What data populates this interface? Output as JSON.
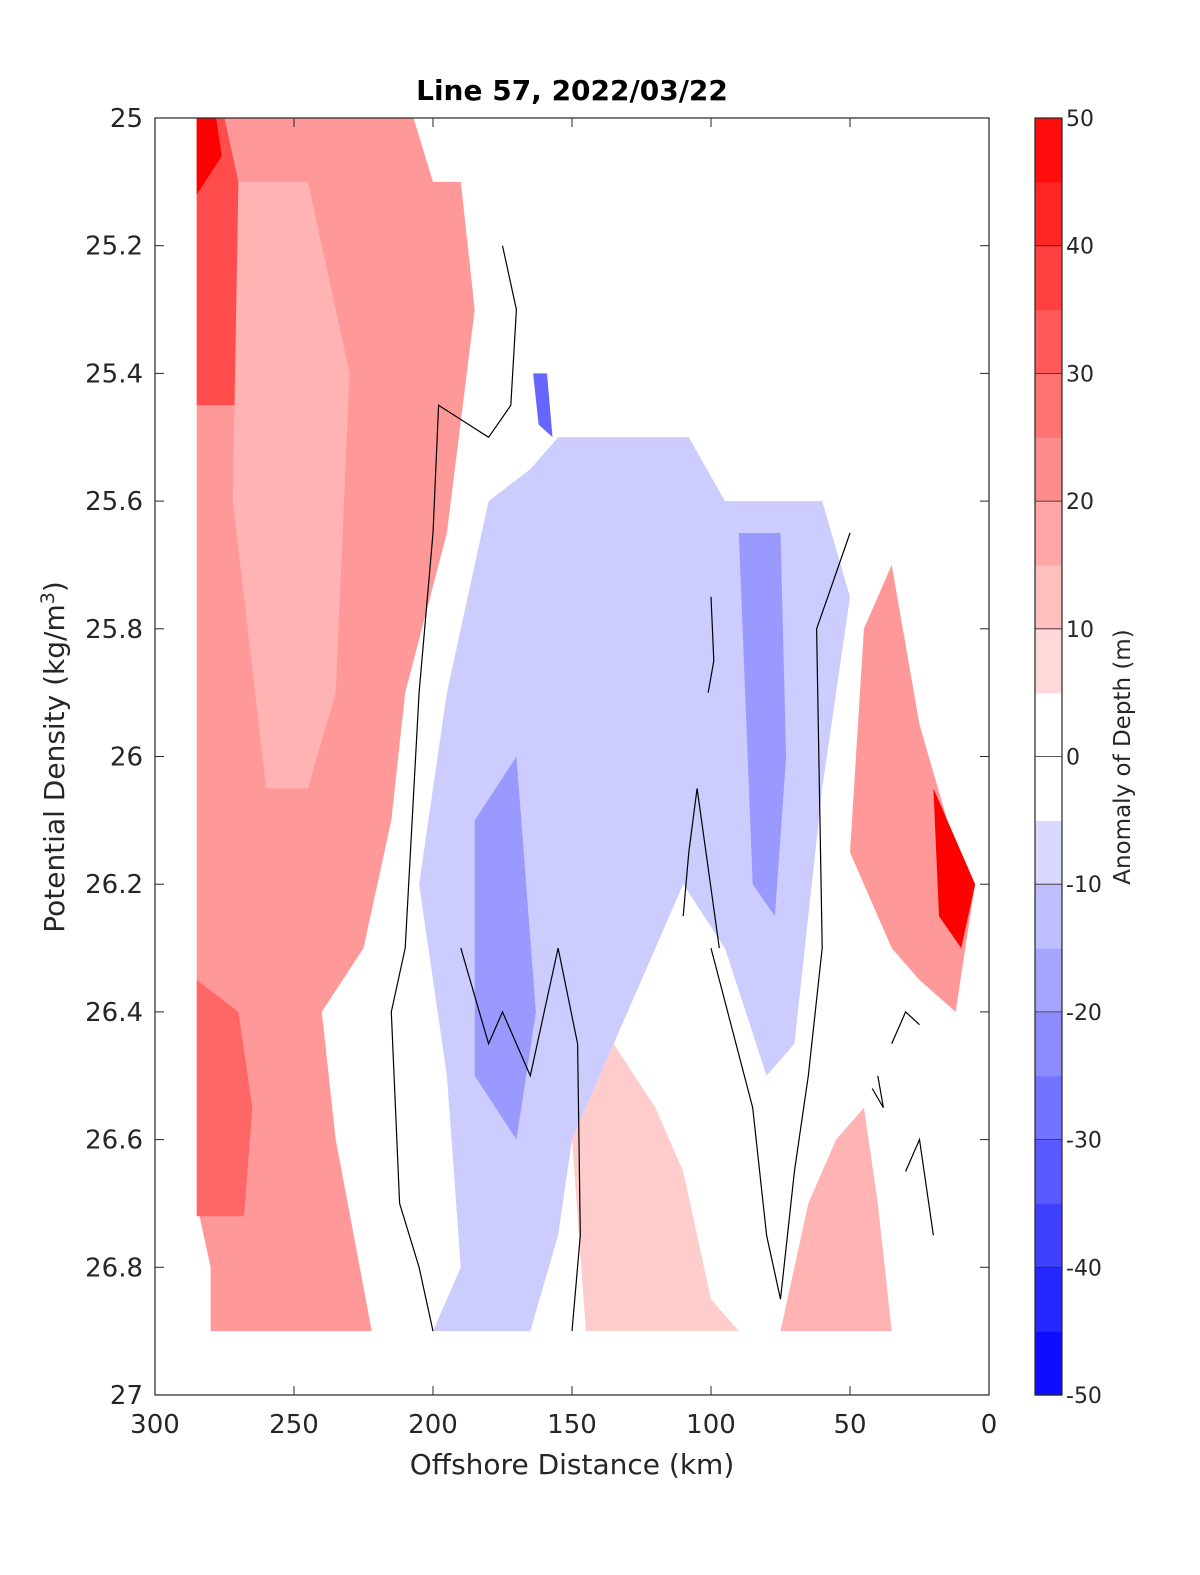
{
  "chart_data": {
    "type": "heatmap",
    "subtype": "filled-contour",
    "title": "Line 57, 2022/03/22",
    "xlabel": "Offshore Distance (km)",
    "ylabel": "Potential Density (kg/m3)",
    "colorbar_label": "Anomaly of Depth (m)",
    "xlim": [
      300,
      0
    ],
    "ylim": [
      27,
      25
    ],
    "x_reversed": true,
    "y_reversed": true,
    "xticks": [
      300,
      250,
      200,
      150,
      100,
      50,
      0
    ],
    "xtick_labels": [
      "300",
      "250",
      "200",
      "150",
      "100",
      "50",
      "0"
    ],
    "yticks": [
      25,
      25.2,
      25.4,
      25.6,
      25.8,
      26,
      26.2,
      26.4,
      26.6,
      26.8,
      27
    ],
    "ytick_labels": [
      "25",
      "25.2",
      "25.4",
      "25.6",
      "25.8",
      "26",
      "26.2",
      "26.4",
      "26.6",
      "26.8",
      "27"
    ],
    "colorbar_range": [
      -50,
      50
    ],
    "colorbar_step": 5,
    "colorbar_ticks": [
      -50,
      -40,
      -30,
      -20,
      -10,
      0,
      10,
      20,
      30,
      40,
      50
    ],
    "colorbar_tick_labels": [
      "-50",
      "-40",
      "-30",
      "-20",
      "-10",
      "0",
      "10",
      "20",
      "30",
      "40",
      "50"
    ],
    "colormap": {
      "negative": "#0000ff",
      "zero": "#ffffff",
      "positive": "#ff0000"
    },
    "zero_contour": "black",
    "grid": false,
    "regions": [
      {
        "id": "offshore-positive",
        "value": 20,
        "polygon": [
          [
            285,
            25
          ],
          [
            207,
            25
          ],
          [
            200,
            25.1
          ],
          [
            190,
            25.1
          ],
          [
            185,
            25.3
          ],
          [
            195,
            25.65
          ],
          [
            210,
            25.9
          ],
          [
            215,
            26.1
          ],
          [
            225,
            26.3
          ],
          [
            240,
            26.4
          ],
          [
            235,
            26.6
          ],
          [
            222,
            26.9
          ],
          [
            280,
            26.9
          ],
          [
            280,
            26.8
          ],
          [
            285,
            26.7
          ]
        ]
      },
      {
        "id": "offshore-positive-core",
        "value": 35,
        "polygon": [
          [
            285,
            25
          ],
          [
            275,
            25
          ],
          [
            270,
            25.1
          ],
          [
            265,
            25.25
          ],
          [
            262,
            25.45
          ],
          [
            285,
            25.45
          ]
        ]
      },
      {
        "id": "offshore-positive-max",
        "value": 50,
        "polygon": [
          [
            285,
            25
          ],
          [
            278,
            25
          ],
          [
            276,
            25.06
          ],
          [
            285,
            25.12
          ]
        ]
      },
      {
        "id": "offshore-positive-deep",
        "value": 30,
        "polygon": [
          [
            285,
            26.35
          ],
          [
            270,
            26.4
          ],
          [
            265,
            26.55
          ],
          [
            268,
            26.72
          ],
          [
            285,
            26.72
          ]
        ]
      },
      {
        "id": "offshore-positive-band",
        "value": 15,
        "polygon": [
          [
            270,
            25.1
          ],
          [
            245,
            25.1
          ],
          [
            230,
            25.4
          ],
          [
            235,
            25.9
          ],
          [
            245,
            26.05
          ],
          [
            260,
            26.05
          ],
          [
            272,
            25.6
          ]
        ]
      },
      {
        "id": "central-negative",
        "value": -10,
        "polygon": [
          [
            200,
            26.9
          ],
          [
            190,
            26.8
          ],
          [
            195,
            26.5
          ],
          [
            205,
            26.2
          ],
          [
            195,
            25.9
          ],
          [
            180,
            25.6
          ],
          [
            165,
            25.55
          ],
          [
            155,
            25.5
          ],
          [
            130,
            25.5
          ],
          [
            108,
            25.5
          ],
          [
            95,
            25.6
          ],
          [
            60,
            25.6
          ],
          [
            50,
            25.75
          ],
          [
            60,
            26.05
          ],
          [
            70,
            26.45
          ],
          [
            80,
            26.5
          ],
          [
            95,
            26.3
          ],
          [
            110,
            26.2
          ],
          [
            120,
            26.3
          ],
          [
            135,
            26.45
          ],
          [
            150,
            26.6
          ],
          [
            155,
            26.75
          ],
          [
            165,
            26.9
          ]
        ]
      },
      {
        "id": "central-negative-core",
        "value": -20,
        "polygon": [
          [
            185,
            26.1
          ],
          [
            170,
            26.0
          ],
          [
            163,
            26.4
          ],
          [
            170,
            26.6
          ],
          [
            185,
            26.5
          ]
        ]
      },
      {
        "id": "inner-negative-core",
        "value": -20,
        "polygon": [
          [
            90,
            25.65
          ],
          [
            75,
            25.65
          ],
          [
            73,
            26.0
          ],
          [
            77,
            26.25
          ],
          [
            85,
            26.2
          ]
        ]
      },
      {
        "id": "shelf-negative-edge",
        "value": -30,
        "polygon": [
          [
            164,
            25.4
          ],
          [
            159,
            25.4
          ],
          [
            157,
            25.5
          ],
          [
            162,
            25.48
          ]
        ]
      },
      {
        "id": "shelf-positive",
        "value": 20,
        "polygon": [
          [
            45,
            25.8
          ],
          [
            35,
            25.7
          ],
          [
            25,
            25.95
          ],
          [
            15,
            26.1
          ],
          [
            5,
            26.2
          ],
          [
            12,
            26.4
          ],
          [
            25,
            26.35
          ],
          [
            35,
            26.3
          ],
          [
            50,
            26.15
          ]
        ]
      },
      {
        "id": "shelf-positive-max",
        "value": 50,
        "polygon": [
          [
            20,
            26.05
          ],
          [
            15,
            26.1
          ],
          [
            5,
            26.2
          ],
          [
            10,
            26.3
          ],
          [
            18,
            26.25
          ]
        ]
      },
      {
        "id": "deep-positive-mid",
        "value": 10,
        "polygon": [
          [
            150,
            26.6
          ],
          [
            135,
            26.45
          ],
          [
            120,
            26.55
          ],
          [
            110,
            26.65
          ],
          [
            100,
            26.85
          ],
          [
            90,
            26.9
          ],
          [
            145,
            26.9
          ]
        ]
      },
      {
        "id": "deep-positive-shelf",
        "value": 15,
        "polygon": [
          [
            75,
            26.9
          ],
          [
            65,
            26.7
          ],
          [
            55,
            26.6
          ],
          [
            45,
            26.55
          ],
          [
            40,
            26.7
          ],
          [
            35,
            26.9
          ]
        ]
      }
    ],
    "zero_contours": [
      [
        [
          175,
          25.2
        ],
        [
          170,
          25.3
        ],
        [
          172,
          25.45
        ],
        [
          180,
          25.5
        ],
        [
          198,
          25.45
        ],
        [
          200,
          25.65
        ],
        [
          205,
          25.9
        ],
        [
          210,
          26.3
        ],
        [
          215,
          26.4
        ],
        [
          212,
          26.7
        ],
        [
          205,
          26.8
        ],
        [
          200,
          26.9
        ]
      ],
      [
        [
          150,
          26.9
        ],
        [
          147,
          26.75
        ],
        [
          148,
          26.45
        ],
        [
          155,
          26.3
        ],
        [
          160,
          26.4
        ],
        [
          165,
          26.5
        ],
        [
          175,
          26.4
        ],
        [
          180,
          26.45
        ],
        [
          190,
          26.3
        ]
      ],
      [
        [
          100,
          25.75
        ],
        [
          99,
          25.85
        ],
        [
          101,
          25.9
        ]
      ],
      [
        [
          97,
          26.3
        ],
        [
          105,
          26.05
        ],
        [
          108,
          26.15
        ],
        [
          110,
          26.25
        ]
      ],
      [
        [
          100,
          26.3
        ],
        [
          85,
          26.55
        ],
        [
          80,
          26.75
        ],
        [
          75,
          26.85
        ],
        [
          70,
          26.65
        ],
        [
          65,
          26.5
        ],
        [
          60,
          26.3
        ],
        [
          62,
          25.8
        ],
        [
          58,
          25.75
        ],
        [
          50,
          25.65
        ]
      ],
      [
        [
          35,
          26.45
        ],
        [
          30,
          26.4
        ],
        [
          25,
          26.42
        ]
      ],
      [
        [
          40,
          26.5
        ],
        [
          38,
          26.55
        ],
        [
          42,
          26.52
        ]
      ],
      [
        [
          30,
          26.65
        ],
        [
          25,
          26.6
        ],
        [
          20,
          26.75
        ]
      ]
    ]
  }
}
